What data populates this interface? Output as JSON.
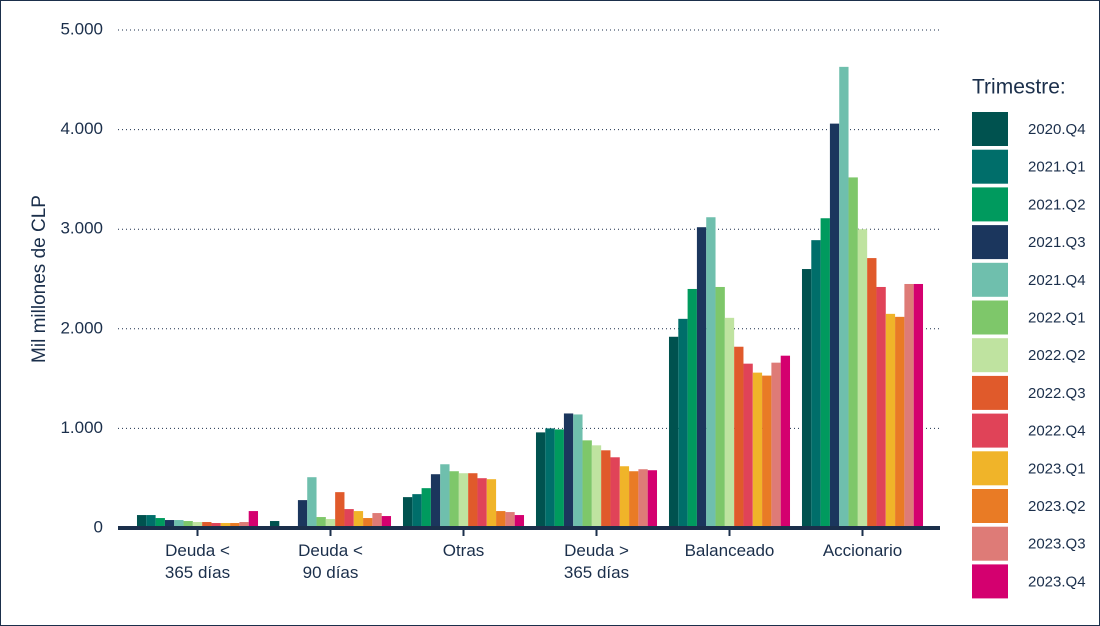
{
  "chart_data": {
    "type": "bar",
    "y_label": "Mil millones de CLP",
    "legend_title": "Trimestre:",
    "legend": "right",
    "grid": true,
    "categories": [
      "Deuda <\n365 días",
      "Deuda <\n90 días",
      "Otras",
      "Deuda >\n365 días",
      "Balanceado",
      "Accionario"
    ],
    "ylim": [
      0,
      5000
    ],
    "yticks": [
      0,
      {
        "value": 1000,
        "label": "1.000"
      },
      {
        "value": 2000,
        "label": "2.000"
      },
      {
        "value": 3000,
        "label": "3.000"
      },
      {
        "value": 4000,
        "label": "4.000"
      },
      {
        "value": 5000,
        "label": "5.000"
      }
    ],
    "series": [
      {
        "name": "2020.Q4",
        "color": "#00524f",
        "values": [
          130,
          70,
          310,
          960,
          1920,
          2600
        ]
      },
      {
        "name": "2021.Q1",
        "color": "#006e6a",
        "values": [
          130,
          0,
          340,
          1000,
          2100,
          2890
        ]
      },
      {
        "name": "2021.Q2",
        "color": "#009a5e",
        "values": [
          100,
          0,
          400,
          990,
          2400,
          3110
        ]
      },
      {
        "name": "2021.Q3",
        "color": "#1b365d",
        "values": [
          80,
          280,
          540,
          1150,
          3020,
          4060
        ]
      },
      {
        "name": "2021.Q4",
        "color": "#6fbfad",
        "values": [
          80,
          510,
          640,
          1140,
          3120,
          4630
        ]
      },
      {
        "name": "2022.Q1",
        "color": "#7ec76a",
        "values": [
          70,
          110,
          570,
          880,
          2420,
          3520
        ]
      },
      {
        "name": "2022.Q2",
        "color": "#bfe3a0",
        "values": [
          60,
          90,
          550,
          830,
          2110,
          3000
        ]
      },
      {
        "name": "2022.Q3",
        "color": "#e05a2b",
        "values": [
          60,
          360,
          550,
          780,
          1820,
          2710
        ]
      },
      {
        "name": "2022.Q4",
        "color": "#e04358",
        "values": [
          50,
          190,
          500,
          710,
          1650,
          2420
        ]
      },
      {
        "name": "2023.Q1",
        "color": "#f0b429",
        "values": [
          50,
          170,
          490,
          620,
          1560,
          2150
        ]
      },
      {
        "name": "2023.Q2",
        "color": "#e97b25",
        "values": [
          50,
          100,
          170,
          570,
          1530,
          2120
        ]
      },
      {
        "name": "2023.Q3",
        "color": "#de7b77",
        "values": [
          60,
          150,
          160,
          590,
          1660,
          2450
        ]
      },
      {
        "name": "2023.Q4",
        "color": "#d4006f",
        "values": [
          170,
          120,
          130,
          580,
          1730,
          2450
        ]
      }
    ]
  }
}
